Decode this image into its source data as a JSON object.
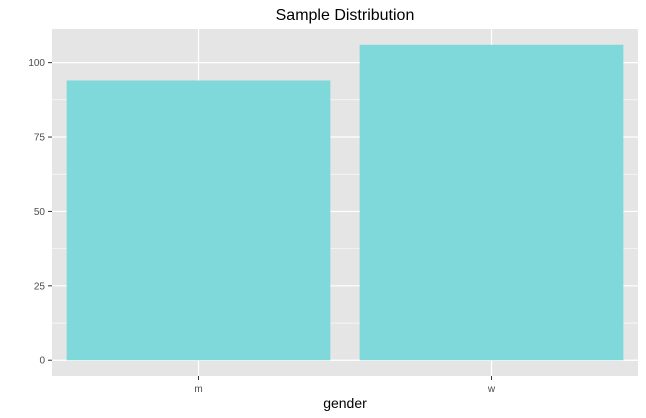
{
  "chart_data": {
    "type": "bar",
    "title": "Sample Distribution",
    "xlabel": "gender",
    "ylabel": "",
    "categories": [
      "m",
      "w"
    ],
    "values": [
      94,
      106
    ],
    "ylim": [
      -5.3,
      111.3
    ],
    "yticks": [
      0,
      25,
      50,
      75,
      100
    ],
    "ytick_labels": [
      "0",
      "25",
      "50",
      "75",
      "100"
    ],
    "grid": true,
    "legend": "none",
    "colors": {
      "bar": "#7fd9db",
      "panel": "#e5e5e5",
      "grid": "#ffffff",
      "axis_tick": "#333333"
    }
  }
}
